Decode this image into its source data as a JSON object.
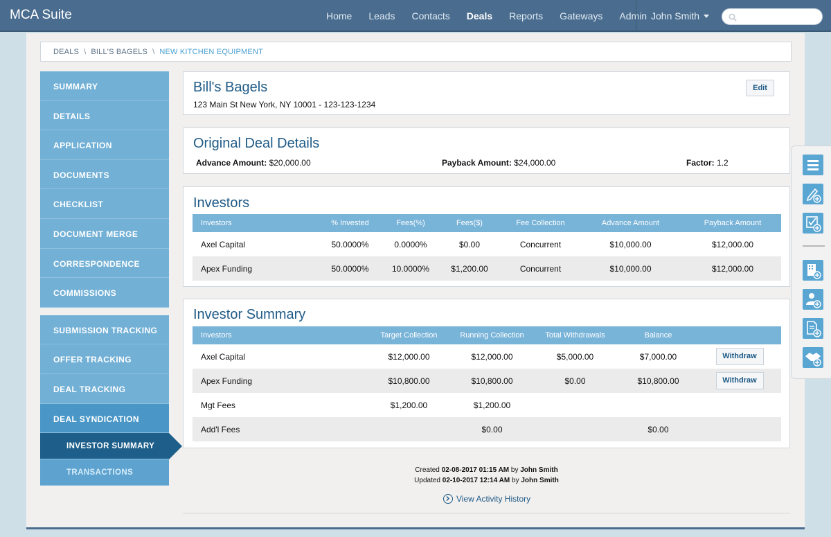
{
  "app": {
    "title": "MCA Suite"
  },
  "nav": {
    "items": [
      {
        "label": "Home",
        "active": false
      },
      {
        "label": "Leads",
        "active": false
      },
      {
        "label": "Contacts",
        "active": false
      },
      {
        "label": "Deals",
        "active": true
      },
      {
        "label": "Reports",
        "active": false
      },
      {
        "label": "Gateways",
        "active": false
      },
      {
        "label": "Admin",
        "active": false
      }
    ],
    "user": "John Smith",
    "search_placeholder": ""
  },
  "breadcrumb": {
    "items": [
      "DEALS",
      "BILL'S BAGELS",
      "NEW KITCHEN EQUIPMENT"
    ]
  },
  "sidebar": {
    "group1": [
      "SUMMARY",
      "DETAILS",
      "APPLICATION",
      "DOCUMENTS",
      "CHECKLIST",
      "DOCUMENT MERGE",
      "CORRESPONDENCE",
      "COMMISSIONS"
    ],
    "group2": [
      "SUBMISSION TRACKING",
      "OFFER TRACKING",
      "DEAL TRACKING"
    ],
    "syndication": "DEAL SYNDICATION",
    "sub_items": [
      "INVESTOR SUMMARY",
      "TRANSACTIONS"
    ]
  },
  "merchant": {
    "name": "Bill's Bagels",
    "address": "123 Main St New York, NY 10001 - 123-123-1234",
    "edit_label": "Edit"
  },
  "original_deal": {
    "title": "Original Deal Details",
    "advance_label": "Advance Amount:",
    "advance_value": "$20,000.00",
    "payback_label": "Payback Amount:",
    "payback_value": "$24,000.00",
    "factor_label": "Factor:",
    "factor_value": "1.2"
  },
  "investors": {
    "title": "Investors",
    "columns": [
      "Investors",
      "% Invested",
      "Fees(%)",
      "Fees($)",
      "Fee Collection",
      "Advance Amount",
      "Payback Amount"
    ],
    "rows": [
      [
        "Axel Capital",
        "50.0000%",
        "0.0000%",
        "$0.00",
        "Concurrent",
        "$10,000.00",
        "$12,000.00"
      ],
      [
        "Apex Funding",
        "50.0000%",
        "10.0000%",
        "$1,200.00",
        "Concurrent",
        "$10,000.00",
        "$12,000.00"
      ]
    ]
  },
  "investor_summary": {
    "title": "Investor Summary",
    "columns": [
      "Investors",
      "Target Collection",
      "Running Collection",
      "Total Withdrawals",
      "Balance",
      ""
    ],
    "rows": [
      [
        "Axel Capital",
        "$12,000.00",
        "$12,000.00",
        "$5,000.00",
        "$7,000.00",
        "Withdraw"
      ],
      [
        "Apex Funding",
        "$10,800.00",
        "$10,800.00",
        "$0.00",
        "$10,800.00",
        "Withdraw"
      ],
      [
        "Mgt Fees",
        "$1,200.00",
        "$1,200.00",
        "",
        "",
        ""
      ],
      [
        "Add'l Fees",
        "",
        "$0.00",
        "",
        "$0.00",
        ""
      ]
    ]
  },
  "footer": {
    "created_label": "Created",
    "created_value": "02-08-2017 01:15 AM",
    "updated_label": "Updated",
    "updated_value": "02-10-2017 12:14 AM",
    "by_label": "by",
    "author": "John Smith",
    "history_link": "View Activity History"
  },
  "right_toolbar": {
    "icons": [
      "list-icon",
      "add-note-icon",
      "add-task-icon",
      "add-company-icon",
      "add-contact-icon",
      "add-document-icon",
      "add-deal-icon"
    ]
  }
}
